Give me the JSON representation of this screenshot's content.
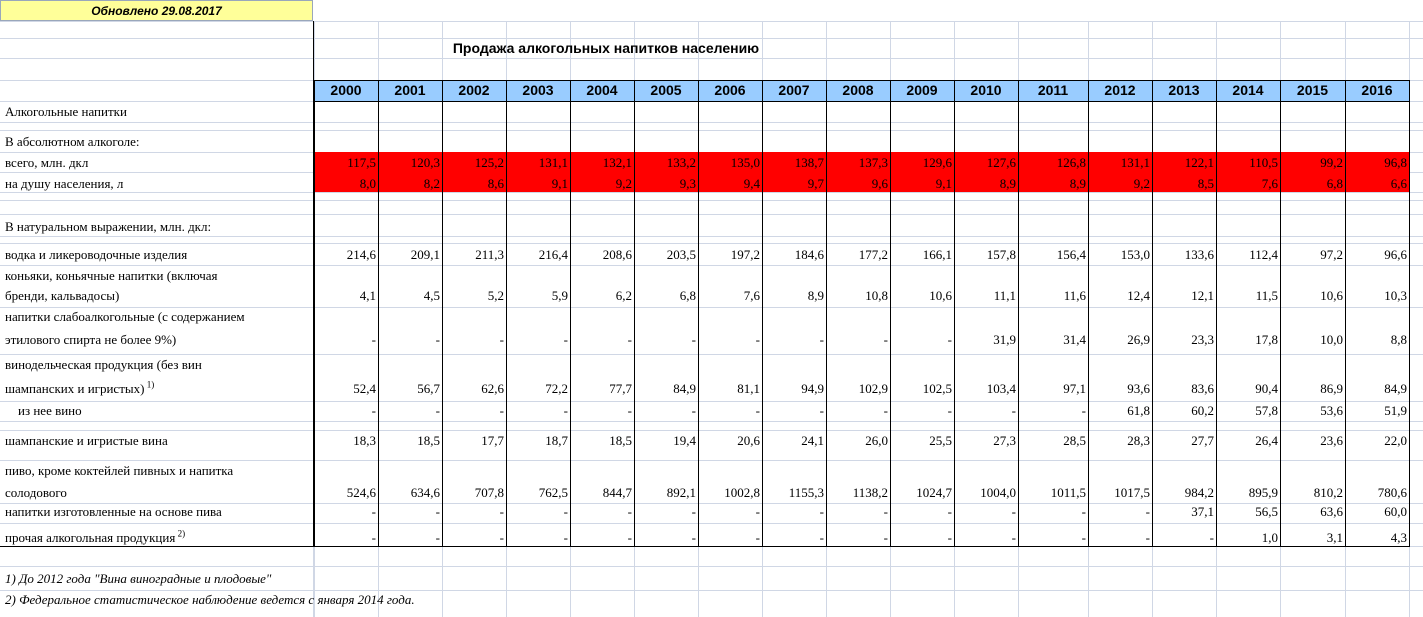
{
  "updated_label": "Обновлено 29.08.2017",
  "title": "Продажа алкогольных напитков населению",
  "years": [
    "2000",
    "2001",
    "2002",
    "2003",
    "2004",
    "2005",
    "2006",
    "2007",
    "2008",
    "2009",
    "2010",
    "2011",
    "2012",
    "2013",
    "2014",
    "2015",
    "2016"
  ],
  "colors": {
    "header_fill": "#99ccff",
    "highlight_fill": "#ff0000",
    "updated_fill": "#ffff99",
    "gridline": "#d0d7e5"
  },
  "section_alcohol_label": "Алкогольные напитки",
  "section_absolute_label": "В абсолютном алкоголе:",
  "section_natural_label": "В натуральном выражении, млн. дкл:",
  "rows": [
    {
      "key": "total",
      "lines": [
        "всего, млн. дкл"
      ],
      "highlight": true,
      "values": [
        "117,5",
        "120,3",
        "125,2",
        "131,1",
        "132,1",
        "133,2",
        "135,0",
        "138,7",
        "137,3",
        "129,6",
        "127,6",
        "126,8",
        "131,1",
        "122,1",
        "110,5",
        "99,2",
        "96,8"
      ]
    },
    {
      "key": "per_capita",
      "lines": [
        "на душу населения, л"
      ],
      "highlight": true,
      "values": [
        "8,0",
        "8,2",
        "8,6",
        "9,1",
        "9,2",
        "9,3",
        "9,4",
        "9,7",
        "9,6",
        "9,1",
        "8,9",
        "8,9",
        "9,2",
        "8,5",
        "7,6",
        "6,8",
        "6,6"
      ]
    },
    {
      "key": "vodka",
      "lines": [
        "водка и ликероводочные изделия"
      ],
      "values": [
        "214,6",
        "209,1",
        "211,3",
        "216,4",
        "208,6",
        "203,5",
        "197,2",
        "184,6",
        "177,2",
        "166,1",
        "157,8",
        "156,4",
        "153,0",
        "133,6",
        "112,4",
        "97,2",
        "96,6"
      ]
    },
    {
      "key": "cognac",
      "lines": [
        "коньяки, коньячные напитки (включая",
        "бренди, кальвадосы)"
      ],
      "values": [
        "4,1",
        "4,5",
        "5,2",
        "5,9",
        "6,2",
        "6,8",
        "7,6",
        "8,9",
        "10,8",
        "10,6",
        "11,1",
        "11,6",
        "12,4",
        "12,1",
        "11,5",
        "10,6",
        "10,3"
      ]
    },
    {
      "key": "low_alcohol",
      "lines": [
        "напитки слабоалкогольные (с содержанием",
        "этилового спирта не более 9%)"
      ],
      "values": [
        "-",
        "-",
        "-",
        "-",
        "-",
        "-",
        "-",
        "-",
        "-",
        "-",
        "31,9",
        "31,4",
        "26,9",
        "23,3",
        "17,8",
        "10,0",
        "8,8"
      ]
    },
    {
      "key": "wine",
      "lines": [
        "винодельческая продукция (без вин",
        "шампанских и игристых)"
      ],
      "sup": "1)",
      "values": [
        "52,4",
        "56,7",
        "62,6",
        "72,2",
        "77,7",
        "84,9",
        "81,1",
        "94,9",
        "102,9",
        "102,5",
        "103,4",
        "97,1",
        "93,6",
        "83,6",
        "90,4",
        "86,9",
        "84,9"
      ]
    },
    {
      "key": "wine_sub",
      "lines": [
        "из нее вино"
      ],
      "values": [
        "-",
        "-",
        "-",
        "-",
        "-",
        "-",
        "-",
        "-",
        "-",
        "-",
        "-",
        "-",
        "61,8",
        "60,2",
        "57,8",
        "53,6",
        "51,9"
      ]
    },
    {
      "key": "champagne",
      "lines": [
        "шампанские и игристые вина"
      ],
      "values": [
        "18,3",
        "18,5",
        "17,7",
        "18,7",
        "18,5",
        "19,4",
        "20,6",
        "24,1",
        "26,0",
        "25,5",
        "27,3",
        "28,5",
        "28,3",
        "27,7",
        "26,4",
        "23,6",
        "22,0"
      ]
    },
    {
      "key": "beer",
      "lines": [
        "пиво, кроме коктейлей пивных и напитка",
        "солодового"
      ],
      "values": [
        "524,6",
        "634,6",
        "707,8",
        "762,5",
        "844,7",
        "892,1",
        "1002,8",
        "1155,3",
        "1138,2",
        "1024,7",
        "1004,0",
        "1011,5",
        "1017,5",
        "984,2",
        "895,9",
        "810,2",
        "780,6"
      ]
    },
    {
      "key": "beer_based",
      "lines": [
        "напитки изготовленные  на основе пива"
      ],
      "values": [
        "-",
        "-",
        "-",
        "-",
        "-",
        "-",
        "-",
        "-",
        "-",
        "-",
        "-",
        "-",
        "-",
        "37,1",
        "56,5",
        "63,6",
        "60,0"
      ]
    },
    {
      "key": "other",
      "lines": [
        "прочая алкогольная продукция"
      ],
      "sup": "2)",
      "values": [
        "-",
        "-",
        "-",
        "-",
        "-",
        "-",
        "-",
        "-",
        "-",
        "-",
        "-",
        "-",
        "-",
        "-",
        "1,0",
        "3,1",
        "4,3"
      ]
    }
  ],
  "footnotes": [
    "1) До 2012 года \"Вина виноградные и плодовые\"",
    "2) Федеральное статистическое наблюдение ведется с января 2014 года."
  ]
}
